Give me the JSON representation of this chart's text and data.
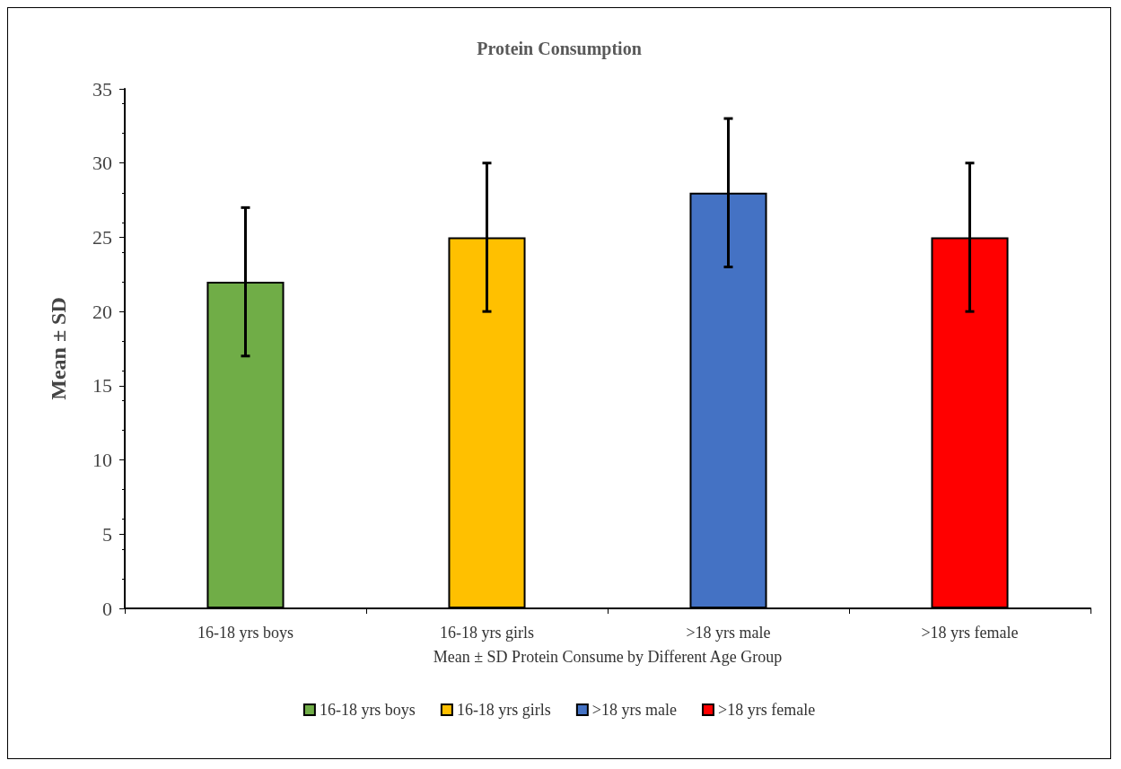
{
  "chart_data": {
    "type": "bar",
    "title": "Protein Consumption",
    "xlabel": "Mean ± SD Protein Consume by Different Age Group",
    "ylabel": "Mean ± SD",
    "categories": [
      "16-18 yrs boys",
      "16-18 yrs girls",
      ">18 yrs male",
      ">18 yrs female"
    ],
    "series": [
      {
        "name": "16-18 yrs boys",
        "color": "#70ad47",
        "values": [
          22,
          null,
          null,
          null
        ],
        "errors": [
          5,
          null,
          null,
          null
        ]
      },
      {
        "name": "16-18 yrs girls",
        "color": "#ffc000",
        "values": [
          null,
          25,
          null,
          null
        ],
        "errors": [
          null,
          5,
          null,
          null
        ]
      },
      {
        "name": ">18 yrs male",
        "color": "#4472c4",
        "values": [
          null,
          null,
          28,
          null
        ],
        "errors": [
          null,
          null,
          5,
          null
        ]
      },
      {
        "name": ">18 yrs female",
        "color": "#ff0000",
        "values": [
          null,
          null,
          null,
          25
        ],
        "errors": [
          null,
          null,
          null,
          5
        ]
      }
    ],
    "ylim": [
      0,
      35
    ],
    "yticks": [
      0,
      5,
      10,
      15,
      20,
      25,
      30,
      35
    ],
    "grid": false,
    "legend": "bottom"
  }
}
